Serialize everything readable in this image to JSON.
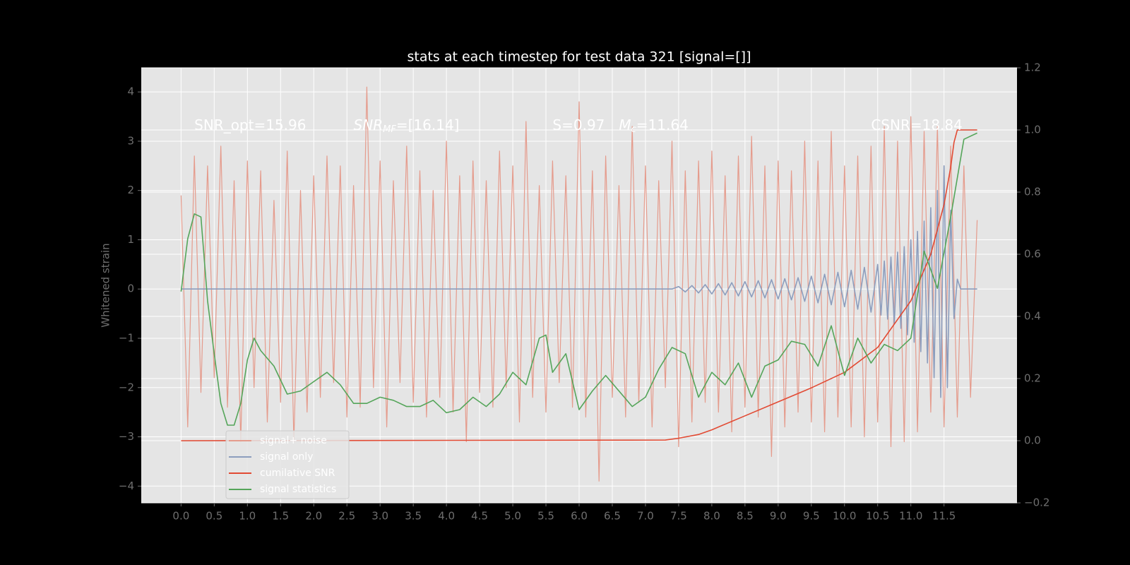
{
  "chart_data": {
    "type": "line",
    "title": "stats at each timestep for test data 321 [signal=[]]",
    "ylabel": "Whitened strain",
    "xlim": [
      -0.6,
      12.6
    ],
    "ylim": [
      -4.34,
      4.49
    ],
    "y2lim": [
      -0.2,
      1.2
    ],
    "xticks": [
      {
        "value": 0,
        "label": "0.0"
      },
      0.5,
      {
        "value": 1,
        "label": "1.0"
      },
      1.5,
      {
        "value": 2,
        "label": "2.0"
      },
      2.5,
      {
        "value": 3,
        "label": "3.0"
      },
      3.5,
      {
        "value": 4,
        "label": "4.0"
      },
      4.5,
      {
        "value": 5,
        "label": "5.0"
      },
      5.5,
      {
        "value": 6,
        "label": "6.0"
      },
      6.5,
      {
        "value": 7,
        "label": "7.0"
      },
      7.5,
      {
        "value": 8,
        "label": "8.0"
      },
      8.5,
      {
        "value": 9,
        "label": "9.0"
      },
      9.5,
      {
        "value": 10,
        "label": "10.0"
      },
      10.5,
      {
        "value": 11,
        "label": "11.0"
      },
      11.5
    ],
    "yticks": [
      {
        "value": -4,
        "label": "−4"
      },
      {
        "value": -3,
        "label": "−3"
      },
      {
        "value": -2,
        "label": "−2"
      },
      {
        "value": -1,
        "label": "−1"
      },
      0,
      1,
      2,
      3,
      4
    ],
    "y2ticks": [
      {
        "value": -0.2,
        "label": "−0.2"
      },
      {
        "value": 0,
        "label": "0.0"
      },
      0.2,
      0.4,
      0.6,
      0.8,
      {
        "value": 1,
        "label": "1.0"
      },
      1.2
    ],
    "grid": true,
    "legend": "lower left",
    "annotations": [
      {
        "text": "SNR_opt=15.96"
      },
      {
        "text": "SNR",
        "sub": "MF",
        "rest": "=[16.14]"
      },
      {
        "text": "S=0.97"
      },
      {
        "text": "M",
        "sub": "c",
        "rest": "=11.64"
      },
      {
        "text": "CSNR=18.84"
      }
    ],
    "series": [
      {
        "name": "signal+ noise",
        "color": "#e59b8c",
        "x": [
          0,
          0.1,
          0.2,
          0.3,
          0.4,
          0.5,
          0.6,
          0.7,
          0.8,
          0.9,
          1,
          1.1,
          1.2,
          1.3,
          1.4,
          1.5,
          1.6,
          1.7,
          1.8,
          1.9,
          2,
          2.1,
          2.2,
          2.3,
          2.4,
          2.5,
          2.6,
          2.7,
          2.8,
          2.9,
          3,
          3.1,
          3.2,
          3.3,
          3.4,
          3.5,
          3.6,
          3.7,
          3.8,
          3.9,
          4,
          4.1,
          4.2,
          4.3,
          4.4,
          4.5,
          4.6,
          4.7,
          4.8,
          4.9,
          5,
          5.1,
          5.2,
          5.3,
          5.4,
          5.5,
          5.6,
          5.7,
          5.8,
          5.9,
          6,
          6.1,
          6.2,
          6.3,
          6.4,
          6.5,
          6.6,
          6.7,
          6.8,
          6.9,
          7,
          7.1,
          7.2,
          7.3,
          7.4,
          7.5,
          7.6,
          7.7,
          7.8,
          7.9,
          8,
          8.1,
          8.2,
          8.3,
          8.4,
          8.5,
          8.6,
          8.7,
          8.8,
          8.9,
          9,
          9.1,
          9.2,
          9.3,
          9.4,
          9.5,
          9.6,
          9.7,
          9.8,
          9.9,
          10,
          10.1,
          10.2,
          10.3,
          10.4,
          10.5,
          10.6,
          10.7,
          10.8,
          10.9,
          11,
          11.1,
          11.2,
          11.3,
          11.4,
          11.5,
          11.6,
          11.7,
          11.8,
          11.9,
          12
        ],
        "values": [
          1.9,
          -2.8,
          2.7,
          -2.1,
          2.5,
          -1.8,
          2.9,
          -2.4,
          2.2,
          -3.1,
          2.6,
          -2.0,
          2.4,
          -2.7,
          1.8,
          -2.3,
          2.8,
          -3.1,
          2.0,
          -2.5,
          2.3,
          -2.2,
          2.7,
          -1.9,
          2.5,
          -2.6,
          2.1,
          -2.4,
          4.1,
          -2.0,
          2.6,
          -2.8,
          2.2,
          -1.9,
          2.9,
          -2.3,
          2.4,
          -2.6,
          2.0,
          -2.2,
          3.0,
          -2.5,
          2.3,
          -3.1,
          2.6,
          -2.1,
          2.2,
          -2.4,
          2.8,
          -2.0,
          2.5,
          -2.7,
          3.4,
          -2.2,
          2.1,
          -2.5,
          2.6,
          -1.9,
          2.3,
          -2.4,
          3.8,
          -2.6,
          2.4,
          -3.9,
          2.7,
          -2.2,
          2.1,
          -2.6,
          3.3,
          -2.3,
          2.5,
          -2.8,
          2.2,
          -2.0,
          3.0,
          -3.2,
          2.4,
          -2.7,
          2.6,
          -2.3,
          2.8,
          -2.5,
          2.3,
          -2.9,
          2.7,
          -2.4,
          3.1,
          -2.6,
          2.5,
          -3.4,
          2.6,
          -2.8,
          2.4,
          -2.5,
          3.0,
          -2.7,
          2.6,
          -2.9,
          3.2,
          -2.6,
          2.5,
          -2.8,
          2.7,
          -3.0,
          2.9,
          -2.7,
          3.3,
          -3.2,
          3.0,
          -3.1,
          3.5,
          -2.9,
          3.2,
          -2.5,
          3.3,
          -2.8,
          2.9,
          -2.6,
          2.5,
          -2.2,
          1.4
        ]
      },
      {
        "name": "signal only",
        "color": "#8c9dbd",
        "x": [
          0,
          7.4,
          7.5,
          7.6,
          7.7,
          7.8,
          7.9,
          8,
          8.1,
          8.2,
          8.3,
          8.4,
          8.5,
          8.6,
          8.7,
          8.8,
          8.9,
          9,
          9.1,
          9.2,
          9.3,
          9.4,
          9.5,
          9.6,
          9.7,
          9.8,
          9.9,
          10,
          10.1,
          10.2,
          10.3,
          10.4,
          10.5,
          10.55,
          10.6,
          10.65,
          10.7,
          10.75,
          10.8,
          10.85,
          10.9,
          10.95,
          11,
          11.05,
          11.1,
          11.15,
          11.2,
          11.25,
          11.3,
          11.35,
          11.4,
          11.45,
          11.5,
          11.55,
          11.6,
          11.65,
          11.7,
          11.75,
          12
        ],
        "values": [
          0,
          0,
          0.05,
          -0.06,
          0.07,
          -0.08,
          0.09,
          -0.1,
          0.11,
          -0.12,
          0.13,
          -0.14,
          0.15,
          -0.16,
          0.17,
          -0.18,
          0.19,
          -0.2,
          0.21,
          -0.22,
          0.23,
          -0.25,
          0.26,
          -0.28,
          0.3,
          -0.32,
          0.34,
          -0.36,
          0.38,
          -0.41,
          0.44,
          -0.47,
          0.5,
          -0.53,
          0.57,
          -0.61,
          0.65,
          -0.7,
          0.75,
          -0.8,
          0.86,
          -0.93,
          1.0,
          -1.08,
          1.17,
          -1.27,
          1.38,
          -1.5,
          1.65,
          -1.8,
          2.0,
          -2.2,
          2.5,
          -2.0,
          1.6,
          -0.6,
          0.2,
          0,
          0
        ]
      },
      {
        "name": "cumilative SNR",
        "color": "#e24a33",
        "axis": "y2",
        "x": [
          0,
          7.3,
          7.5,
          7.8,
          8,
          8.5,
          9,
          9.5,
          10,
          10.5,
          11,
          11.3,
          11.5,
          11.6,
          11.65,
          11.7,
          12
        ],
        "values": [
          0,
          0.002,
          0.008,
          0.02,
          0.035,
          0.08,
          0.125,
          0.17,
          0.22,
          0.3,
          0.45,
          0.6,
          0.76,
          0.88,
          0.96,
          1.0,
          1.0
        ]
      },
      {
        "name": "signal statistics",
        "color": "#55a55a",
        "axis": "y2",
        "x": [
          0,
          0.1,
          0.2,
          0.3,
          0.4,
          0.5,
          0.6,
          0.7,
          0.8,
          0.9,
          1,
          1.1,
          1.2,
          1.4,
          1.6,
          1.8,
          2,
          2.2,
          2.4,
          2.6,
          2.8,
          3,
          3.2,
          3.4,
          3.6,
          3.8,
          4,
          4.2,
          4.4,
          4.6,
          4.8,
          5,
          5.2,
          5.4,
          5.5,
          5.6,
          5.8,
          6,
          6.2,
          6.4,
          6.6,
          6.8,
          7,
          7.2,
          7.4,
          7.6,
          7.8,
          8,
          8.2,
          8.4,
          8.6,
          8.8,
          9,
          9.2,
          9.4,
          9.6,
          9.8,
          10,
          10.2,
          10.4,
          10.6,
          10.8,
          11,
          11.2,
          11.4,
          11.6,
          11.8,
          12
        ],
        "values": [
          0.48,
          0.65,
          0.73,
          0.72,
          0.45,
          0.28,
          0.12,
          0.05,
          0.05,
          0.12,
          0.26,
          0.33,
          0.29,
          0.24,
          0.15,
          0.16,
          0.19,
          0.22,
          0.18,
          0.12,
          0.12,
          0.14,
          0.13,
          0.11,
          0.11,
          0.13,
          0.09,
          0.1,
          0.14,
          0.11,
          0.15,
          0.22,
          0.18,
          0.33,
          0.34,
          0.22,
          0.28,
          0.1,
          0.16,
          0.21,
          0.16,
          0.11,
          0.14,
          0.23,
          0.3,
          0.28,
          0.14,
          0.22,
          0.18,
          0.25,
          0.14,
          0.24,
          0.26,
          0.32,
          0.31,
          0.24,
          0.37,
          0.21,
          0.33,
          0.25,
          0.31,
          0.29,
          0.33,
          0.61,
          0.49,
          0.72,
          0.97,
          0.99
        ]
      }
    ]
  }
}
